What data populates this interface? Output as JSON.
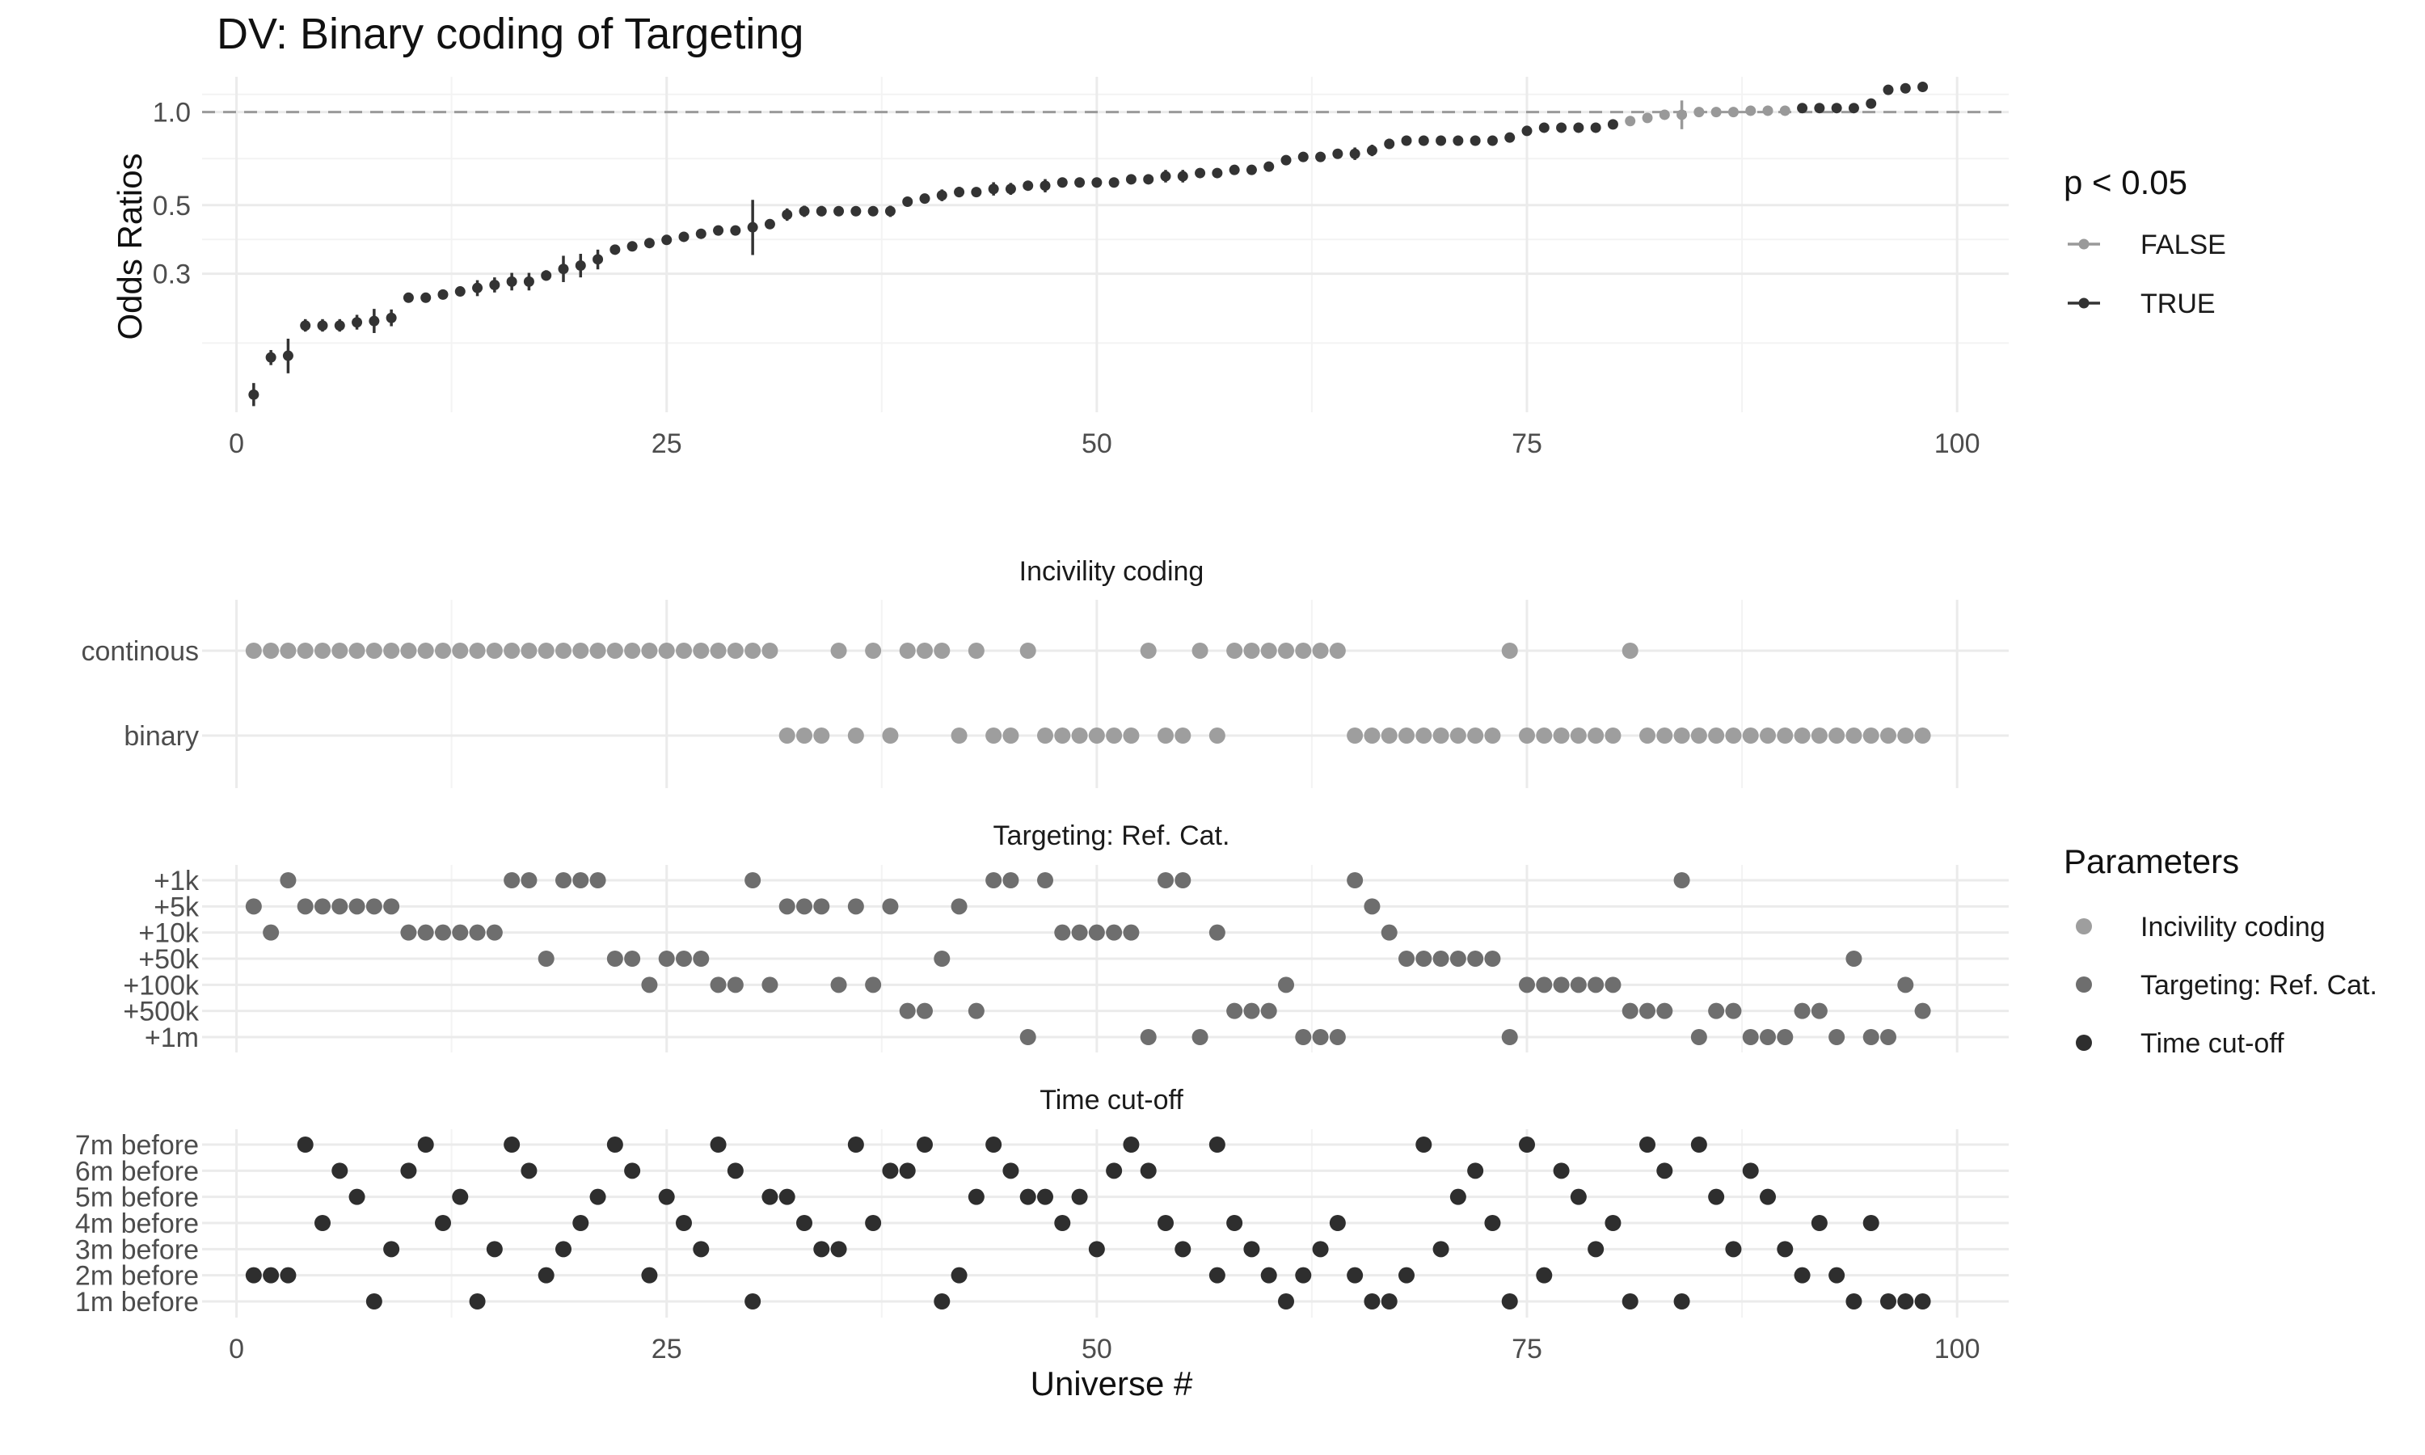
{
  "chart_data": [
    {
      "type": "scatter",
      "title": "DV: Binary coding of Targeting",
      "ylabel": "Odds Ratios",
      "xlabel": "",
      "y_scale": "log",
      "y_ticks": [
        "0.3",
        "0.5",
        "1.0"
      ],
      "x_ticks": [
        "0",
        "25",
        "50",
        "75",
        "100"
      ],
      "xlim": [
        -2,
        103
      ],
      "ylim": [
        0.107,
        1.3
      ],
      "reference_line": 1.0,
      "points": [
        [
          1,
          0.122,
          0.112,
          0.133
        ],
        [
          2,
          0.161,
          0.152,
          0.17
        ],
        [
          3,
          0.163,
          0.143,
          0.185
        ],
        [
          4,
          0.204,
          0.195,
          0.214
        ],
        [
          5,
          0.204,
          0.195,
          0.214
        ],
        [
          6,
          0.204,
          0.195,
          0.214
        ],
        [
          7,
          0.209,
          0.198,
          0.221
        ],
        [
          8,
          0.211,
          0.193,
          0.231
        ],
        [
          9,
          0.216,
          0.203,
          0.23
        ],
        [
          10,
          0.251,
          0.242,
          0.26
        ],
        [
          11,
          0.251,
          0.242,
          0.26
        ],
        [
          12,
          0.257,
          0.248,
          0.266
        ],
        [
          13,
          0.263,
          0.254,
          0.273
        ],
        [
          14,
          0.27,
          0.254,
          0.286
        ],
        [
          15,
          0.276,
          0.261,
          0.292
        ],
        [
          16,
          0.283,
          0.265,
          0.302
        ],
        [
          17,
          0.283,
          0.265,
          0.302
        ],
        [
          18,
          0.296,
          0.285,
          0.308
        ],
        [
          19,
          0.311,
          0.282,
          0.343
        ],
        [
          20,
          0.319,
          0.292,
          0.348
        ],
        [
          21,
          0.334,
          0.31,
          0.359
        ],
        [
          22,
          0.359,
          0.348,
          0.371
        ],
        [
          23,
          0.368,
          0.356,
          0.38
        ],
        [
          24,
          0.377,
          0.365,
          0.389
        ],
        [
          25,
          0.386,
          0.375,
          0.398
        ],
        [
          26,
          0.395,
          0.384,
          0.407
        ],
        [
          27,
          0.404,
          0.392,
          0.417
        ],
        [
          28,
          0.414,
          0.401,
          0.427
        ],
        [
          29,
          0.414,
          0.401,
          0.427
        ],
        [
          30,
          0.424,
          0.345,
          0.52
        ],
        [
          31,
          0.434,
          0.421,
          0.448
        ],
        [
          32,
          0.466,
          0.445,
          0.488
        ],
        [
          33,
          0.478,
          0.458,
          0.498
        ],
        [
          34,
          0.478,
          0.46,
          0.497
        ],
        [
          35,
          0.478,
          0.462,
          0.495
        ],
        [
          36,
          0.478,
          0.464,
          0.493
        ],
        [
          37,
          0.478,
          0.464,
          0.493
        ],
        [
          38,
          0.478,
          0.458,
          0.498
        ],
        [
          39,
          0.513,
          0.498,
          0.528
        ],
        [
          40,
          0.525,
          0.51,
          0.541
        ],
        [
          41,
          0.538,
          0.515,
          0.562
        ],
        [
          42,
          0.551,
          0.53,
          0.573
        ],
        [
          43,
          0.551,
          0.533,
          0.57
        ],
        [
          44,
          0.564,
          0.537,
          0.593
        ],
        [
          45,
          0.564,
          0.54,
          0.59
        ],
        [
          46,
          0.578,
          0.558,
          0.598
        ],
        [
          47,
          0.578,
          0.55,
          0.607
        ],
        [
          48,
          0.592,
          0.575,
          0.61
        ],
        [
          49,
          0.592,
          0.577,
          0.608
        ],
        [
          50,
          0.592,
          0.577,
          0.608
        ],
        [
          51,
          0.592,
          0.577,
          0.608
        ],
        [
          52,
          0.606,
          0.59,
          0.622
        ],
        [
          53,
          0.606,
          0.585,
          0.628
        ],
        [
          54,
          0.62,
          0.592,
          0.65
        ],
        [
          55,
          0.62,
          0.592,
          0.65
        ],
        [
          56,
          0.635,
          0.618,
          0.652
        ],
        [
          57,
          0.635,
          0.618,
          0.652
        ],
        [
          58,
          0.65,
          0.633,
          0.668
        ],
        [
          59,
          0.65,
          0.633,
          0.668
        ],
        [
          60,
          0.666,
          0.648,
          0.684
        ],
        [
          61,
          0.699,
          0.675,
          0.724
        ],
        [
          62,
          0.716,
          0.7,
          0.733
        ],
        [
          63,
          0.716,
          0.7,
          0.733
        ],
        [
          64,
          0.733,
          0.716,
          0.75
        ],
        [
          65,
          0.733,
          0.7,
          0.768
        ],
        [
          66,
          0.751,
          0.72,
          0.784
        ],
        [
          67,
          0.789,
          0.76,
          0.82
        ],
        [
          68,
          0.808,
          0.79,
          0.827
        ],
        [
          69,
          0.808,
          0.79,
          0.827
        ],
        [
          70,
          0.808,
          0.79,
          0.827
        ],
        [
          71,
          0.808,
          0.79,
          0.827
        ],
        [
          72,
          0.808,
          0.79,
          0.827
        ],
        [
          73,
          0.808,
          0.79,
          0.827
        ],
        [
          74,
          0.827,
          0.8,
          0.855
        ],
        [
          75,
          0.869,
          0.85,
          0.889
        ],
        [
          76,
          0.89,
          0.872,
          0.909
        ],
        [
          77,
          0.89,
          0.872,
          0.909
        ],
        [
          78,
          0.89,
          0.872,
          0.909
        ],
        [
          79,
          0.89,
          0.872,
          0.909
        ],
        [
          80,
          0.912,
          0.893,
          0.932
        ],
        [
          81,
          0.935,
          0.916,
          0.955
        ],
        [
          82,
          0.957,
          0.937,
          0.978
        ],
        [
          83,
          0.98,
          0.96,
          1.001
        ],
        [
          84,
          0.98,
          0.88,
          1.09
        ],
        [
          85,
          1.0,
          0.98,
          1.021
        ],
        [
          86,
          1.0,
          0.98,
          1.021
        ],
        [
          87,
          1.0,
          0.98,
          1.021
        ],
        [
          88,
          1.01,
          0.99,
          1.031
        ],
        [
          89,
          1.01,
          0.99,
          1.031
        ],
        [
          90,
          1.01,
          0.99,
          1.031
        ],
        [
          91,
          1.03,
          1.01,
          1.051
        ],
        [
          92,
          1.03,
          1.01,
          1.051
        ],
        [
          93,
          1.03,
          1.01,
          1.051
        ],
        [
          94,
          1.03,
          1.01,
          1.051
        ],
        [
          95,
          1.065,
          1.045,
          1.086
        ],
        [
          96,
          1.18,
          1.16,
          1.2
        ],
        [
          97,
          1.193,
          1.173,
          1.214
        ],
        [
          98,
          1.206,
          1.186,
          1.227
        ]
      ],
      "legend": {
        "title": "p < 0.05",
        "placement": "right",
        "entries": [
          {
            "label": "FALSE",
            "color": "#999999"
          },
          {
            "label": "TRUE",
            "color": "#333333"
          }
        ]
      },
      "significant_false_range": [
        81,
        90
      ]
    },
    {
      "type": "scatter",
      "title": "Incivility coding",
      "categories": [
        "continous",
        "binary"
      ],
      "color": "#9e9e9e",
      "x_ticks": [],
      "rows": [
        {
          "category": "continous",
          "x": [
            1,
            2,
            3,
            4,
            5,
            6,
            7,
            8,
            9,
            10,
            11,
            12,
            13,
            14,
            15,
            16,
            17,
            18,
            19,
            20,
            21,
            22,
            23,
            24,
            25,
            26,
            27,
            28,
            29,
            30,
            31,
            35,
            37,
            39,
            40,
            41,
            43,
            46,
            53,
            56,
            58,
            59,
            60,
            61,
            62,
            63,
            64,
            74,
            81
          ]
        },
        {
          "category": "binary",
          "x": [
            32,
            33,
            34,
            36,
            38,
            42,
            44,
            45,
            47,
            48,
            49,
            50,
            51,
            52,
            54,
            55,
            57,
            65,
            66,
            67,
            68,
            69,
            70,
            71,
            72,
            73,
            75,
            76,
            77,
            78,
            79,
            80,
            82,
            83,
            84,
            85,
            86,
            87,
            88,
            89,
            90,
            91,
            92,
            93,
            94,
            95,
            96,
            97,
            98
          ]
        }
      ]
    },
    {
      "type": "scatter",
      "title": "Targeting: Ref. Cat.",
      "categories": [
        "+1k",
        "+5k",
        "+10k",
        "+50k",
        "+100k",
        "+500k",
        "+1m"
      ],
      "color": "#6e6e6e",
      "x_ticks": [],
      "rows": [
        {
          "category": "+1k",
          "x": [
            3,
            16,
            17,
            19,
            20,
            21,
            30,
            44,
            45,
            47,
            54,
            55,
            65,
            84
          ]
        },
        {
          "category": "+5k",
          "x": [
            1,
            4,
            5,
            6,
            7,
            8,
            9,
            32,
            33,
            34,
            36,
            38,
            42,
            66
          ]
        },
        {
          "category": "+10k",
          "x": [
            2,
            10,
            11,
            12,
            13,
            14,
            15,
            48,
            49,
            50,
            51,
            52,
            57,
            67
          ]
        },
        {
          "category": "+50k",
          "x": [
            18,
            22,
            23,
            25,
            26,
            27,
            41,
            68,
            69,
            70,
            71,
            72,
            73,
            94
          ]
        },
        {
          "category": "+100k",
          "x": [
            24,
            28,
            29,
            31,
            35,
            37,
            61,
            75,
            76,
            77,
            78,
            79,
            80,
            97
          ]
        },
        {
          "category": "+500k",
          "x": [
            39,
            40,
            43,
            58,
            59,
            60,
            81,
            82,
            83,
            86,
            87,
            91,
            92,
            98
          ]
        },
        {
          "category": "+1m",
          "x": [
            46,
            53,
            56,
            62,
            63,
            64,
            74,
            85,
            88,
            89,
            90,
            93,
            95,
            96
          ]
        }
      ]
    },
    {
      "type": "scatter",
      "title": "Time cut-off",
      "xlabel": "Universe #",
      "categories": [
        "7m before",
        "6m before",
        "5m before",
        "4m before",
        "3m before",
        "2m before",
        "1m before"
      ],
      "color": "#2e2e2e",
      "x_ticks": [
        "0",
        "25",
        "50",
        "75",
        "100"
      ],
      "rows": [
        {
          "category": "7m before",
          "x": [
            4,
            11,
            16,
            22,
            28,
            36,
            40,
            44,
            52,
            57,
            69,
            75,
            82,
            85
          ]
        },
        {
          "category": "6m before",
          "x": [
            6,
            10,
            17,
            23,
            29,
            38,
            39,
            45,
            51,
            53,
            72,
            77,
            83,
            88
          ]
        },
        {
          "category": "5m before",
          "x": [
            7,
            13,
            21,
            25,
            31,
            32,
            43,
            46,
            47,
            49,
            71,
            78,
            86,
            89
          ]
        },
        {
          "category": "4m before",
          "x": [
            5,
            12,
            20,
            26,
            33,
            37,
            48,
            54,
            58,
            64,
            73,
            80,
            92,
            95
          ]
        },
        {
          "category": "3m before",
          "x": [
            9,
            15,
            19,
            27,
            34,
            35,
            50,
            55,
            59,
            63,
            70,
            79,
            87,
            90
          ]
        },
        {
          "category": "2m before",
          "x": [
            1,
            2,
            3,
            18,
            24,
            42,
            57,
            60,
            62,
            65,
            68,
            76,
            91,
            93
          ]
        },
        {
          "category": "1m before",
          "x": [
            8,
            14,
            30,
            41,
            61,
            66,
            67,
            74,
            81,
            84,
            94,
            96,
            97,
            98
          ]
        }
      ]
    }
  ],
  "parameters_legend": {
    "title": "Parameters",
    "placement": "right",
    "entries": [
      {
        "label": "Incivility coding",
        "color": "#9e9e9e"
      },
      {
        "label": "Targeting: Ref. Cat.",
        "color": "#6e6e6e"
      },
      {
        "label": "Time cut-off",
        "color": "#2e2e2e"
      }
    ]
  }
}
